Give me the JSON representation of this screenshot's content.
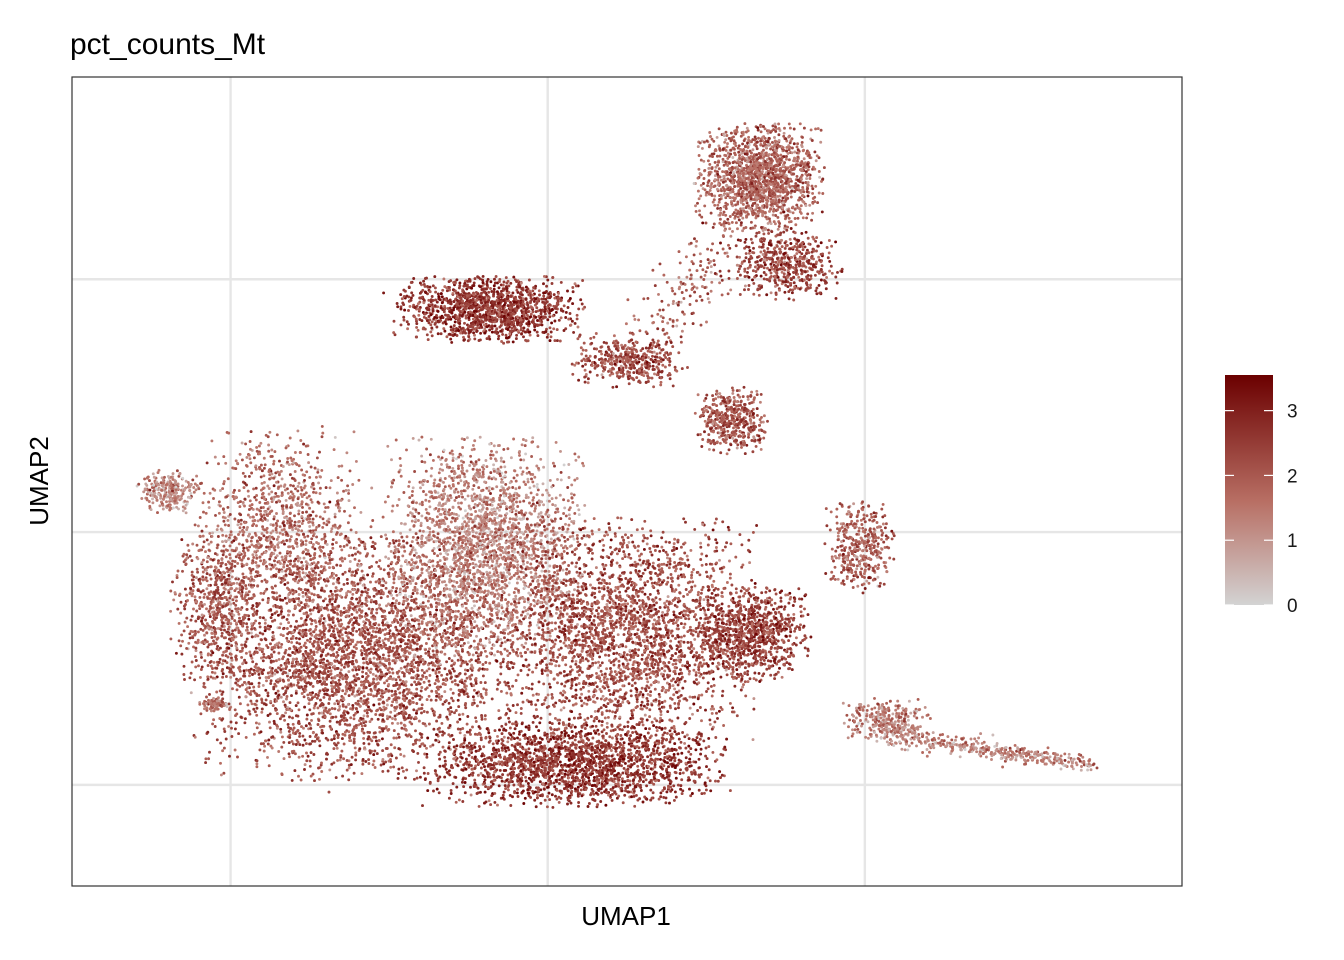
{
  "chart_data": {
    "type": "scatter",
    "title": "pct_counts_Mt",
    "xlabel": "UMAP1",
    "ylabel": "UMAP2",
    "xlim": [
      -9,
      12
    ],
    "ylim": [
      -7,
      9
    ],
    "grid": true,
    "x_gridlines": [
      -6,
      0,
      6
    ],
    "y_gridlines": [
      -5,
      0,
      5
    ],
    "x_tick_labels_shown": false,
    "y_tick_labels_shown": false,
    "color_scale": {
      "name": "",
      "min": 0,
      "max": 3.55,
      "ticks": [
        0,
        1,
        2,
        3
      ],
      "low_color": "#d3d3d3",
      "high_color": "#6b0000"
    },
    "legend_placement": "right",
    "clusters": [
      {
        "cx": -3.6,
        "cy": -2.5,
        "sx": 2.6,
        "sy": 2.0,
        "n": 3600,
        "mean_value": 2.1
      },
      {
        "cx": -1.2,
        "cy": -0.3,
        "sx": 1.6,
        "sy": 1.8,
        "n": 2200,
        "mean_value": 1.3
      },
      {
        "cx": 1.5,
        "cy": -2.0,
        "sx": 2.1,
        "sy": 1.9,
        "n": 2600,
        "mean_value": 2.2
      },
      {
        "cx": 0.5,
        "cy": -4.6,
        "sx": 2.4,
        "sy": 0.7,
        "n": 1900,
        "mean_value": 2.6
      },
      {
        "cx": -5.0,
        "cy": 0.2,
        "sx": 1.4,
        "sy": 1.5,
        "n": 900,
        "mean_value": 1.7
      },
      {
        "cx": -7.2,
        "cy": 0.8,
        "sx": 0.5,
        "sy": 0.35,
        "n": 260,
        "mean_value": 1.3
      },
      {
        "cx": -6.3,
        "cy": -1.5,
        "sx": 0.7,
        "sy": 1.2,
        "n": 500,
        "mean_value": 2.0
      },
      {
        "cx": -1.1,
        "cy": 4.4,
        "sx": 1.5,
        "sy": 0.55,
        "n": 1300,
        "mean_value": 2.6
      },
      {
        "cx": 1.5,
        "cy": 3.4,
        "sx": 0.9,
        "sy": 0.45,
        "n": 400,
        "mean_value": 2.2
      },
      {
        "cx": 3.5,
        "cy": 2.2,
        "sx": 0.55,
        "sy": 0.55,
        "n": 420,
        "mean_value": 2.1
      },
      {
        "cx": 4.0,
        "cy": 7.0,
        "sx": 1.0,
        "sy": 0.9,
        "n": 1500,
        "mean_value": 1.8
      },
      {
        "cx": 4.5,
        "cy": 5.3,
        "sx": 0.9,
        "sy": 0.6,
        "n": 500,
        "mean_value": 2.3
      },
      {
        "cx": 5.9,
        "cy": -0.3,
        "sx": 0.55,
        "sy": 0.8,
        "n": 380,
        "mean_value": 1.9
      },
      {
        "cx": 3.9,
        "cy": -2.0,
        "sx": 0.9,
        "sy": 0.8,
        "n": 800,
        "mean_value": 2.4
      },
      {
        "cx": 6.4,
        "cy": -3.7,
        "sx": 0.7,
        "sy": 0.35,
        "n": 260,
        "mean_value": 1.4
      },
      {
        "cx": -6.3,
        "cy": -3.4,
        "sx": 0.22,
        "sy": 0.12,
        "n": 70,
        "mean_value": 1.4
      }
    ],
    "tail": {
      "from": [
        6.4,
        -4.0
      ],
      "to": [
        10.3,
        -4.6
      ],
      "n": 420,
      "spread": 0.12,
      "mean_value": 1.3
    },
    "sparse_bridge": {
      "from": [
        2.0,
        3.8
      ],
      "to": [
        3.2,
        5.6
      ],
      "n": 160,
      "spread": 0.5,
      "mean_value": 1.8
    }
  }
}
